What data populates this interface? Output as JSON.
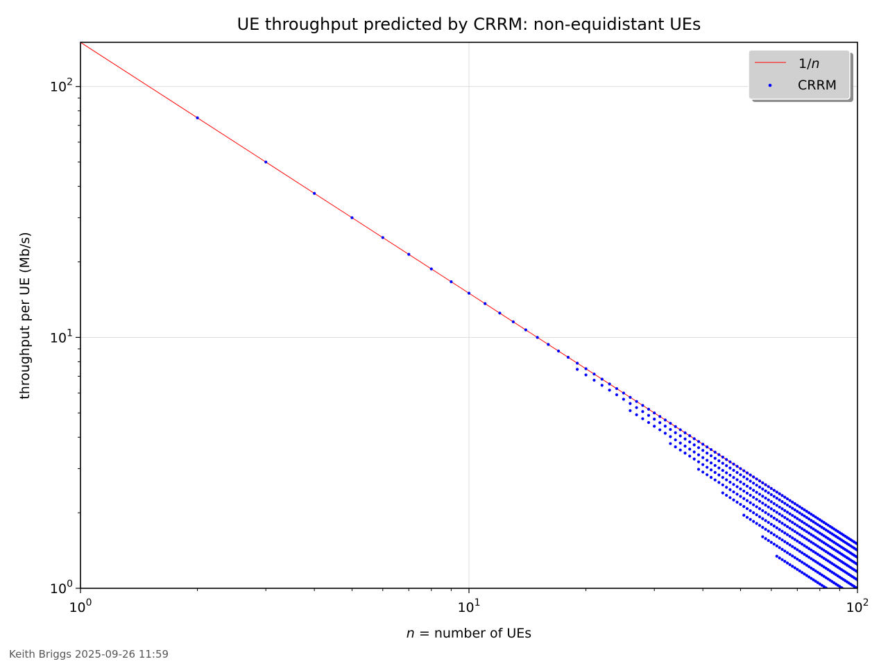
{
  "chart_data": {
    "type": "scatter",
    "title": "UE throughput predicted by CRRM: non-equidistant UEs",
    "xlabel_italic": "n",
    "xlabel_rest": " = number of UEs",
    "ylabel": "throughput per UE (Mb/s)",
    "xscale": "log",
    "yscale": "log",
    "xlim": [
      1,
      100
    ],
    "ylim": [
      1,
      150
    ],
    "grid": "major",
    "legend_placement": "top-right",
    "x_ticks": [
      {
        "base": "10",
        "exp": "0"
      },
      {
        "base": "10",
        "exp": "1"
      },
      {
        "base": "10",
        "exp": "2"
      }
    ],
    "y_ticks": [
      {
        "base": "10",
        "exp": "0"
      },
      {
        "base": "10",
        "exp": "1"
      },
      {
        "base": "10",
        "exp": "2"
      }
    ],
    "colors": {
      "line": "#ff0000",
      "points": "#0000ff",
      "grid": "#dcdcdc",
      "legend_bg": "#d0d0d0"
    },
    "series": [
      {
        "name": "1/n",
        "legend_prefix": "1/",
        "legend_italic": "n",
        "kind": "line",
        "formula": "y = 150 / n",
        "amplitude": 150
      },
      {
        "name": "CRRM",
        "kind": "scatter",
        "bands": [
          {
            "ratio": 1.0,
            "x_start": 2,
            "x_end": 100
          },
          {
            "ratio": 0.945,
            "x_start": 19,
            "x_end": 100
          },
          {
            "ratio": 0.885,
            "x_start": 26,
            "x_end": 100
          },
          {
            "ratio": 0.83,
            "x_start": 33,
            "x_end": 100
          },
          {
            "ratio": 0.775,
            "x_start": 39,
            "x_end": 100
          },
          {
            "ratio": 0.72,
            "x_start": 45,
            "x_end": 100
          },
          {
            "ratio": 0.665,
            "x_start": 51,
            "x_end": 100
          },
          {
            "ratio": 0.61,
            "x_start": 57,
            "x_end": 100
          },
          {
            "ratio": 0.555,
            "x_start": 62,
            "x_end": 100
          }
        ]
      }
    ]
  },
  "footer": {
    "credit": "Keith Briggs 2025-09-26 11:59"
  }
}
